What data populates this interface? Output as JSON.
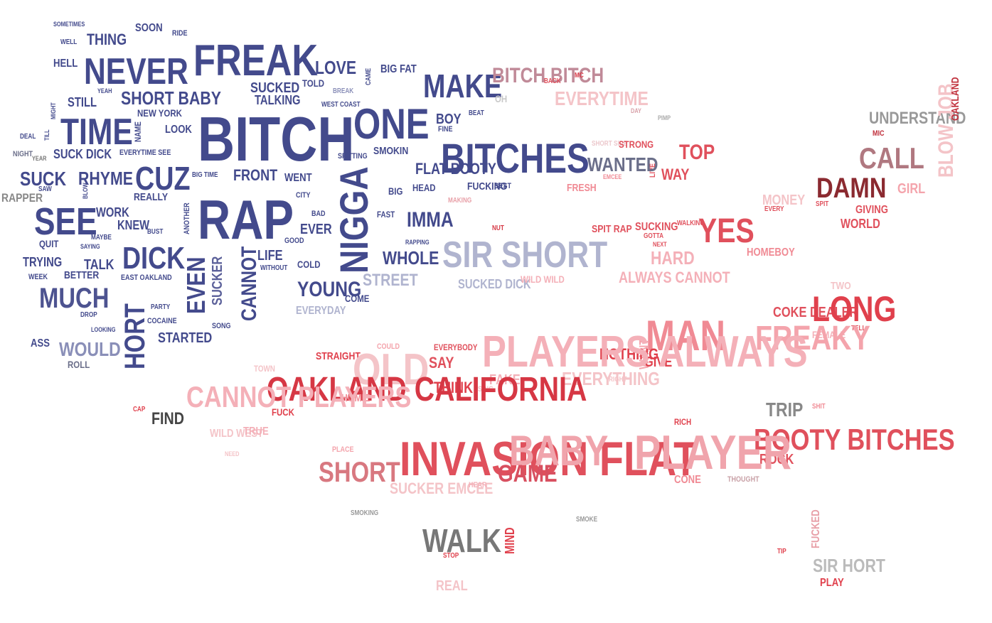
{
  "words": [
    {
      "text": "BITCH",
      "color": "#434a8c"
    },
    {
      "text": "RAP",
      "color": "#434a8c"
    },
    {
      "text": "NIGGA",
      "color": "#434a8c"
    },
    {
      "text": "BITCHES",
      "color": "#434a8c"
    },
    {
      "text": "FREAK",
      "color": "#434a8c"
    },
    {
      "text": "ONE",
      "color": "#434a8c"
    },
    {
      "text": "NEVER",
      "color": "#434a8c"
    },
    {
      "text": "TIME",
      "color": "#434a8c"
    },
    {
      "text": "MAKE",
      "color": "#434a8c"
    },
    {
      "text": "SEE",
      "color": "#434a8c"
    },
    {
      "text": "CUZ",
      "color": "#434a8c"
    },
    {
      "text": "DICK",
      "color": "#434a8c"
    },
    {
      "text": "MUCH",
      "color": "#4d5390"
    },
    {
      "text": "HORT",
      "color": "#434a8c"
    },
    {
      "text": "EVEN",
      "color": "#434a8c"
    },
    {
      "text": "CANNOT",
      "color": "#434a8c"
    },
    {
      "text": "SHORT BABY",
      "color": "#434a8c"
    },
    {
      "text": "LOVE",
      "color": "#434a8c"
    },
    {
      "text": "SUCKED",
      "color": "#434a8c"
    },
    {
      "text": "TALKING",
      "color": "#434a8c"
    },
    {
      "text": "SUCK",
      "color": "#434a8c"
    },
    {
      "text": "RHYME",
      "color": "#434a8c"
    },
    {
      "text": "THING",
      "color": "#434a8c"
    },
    {
      "text": "HELL",
      "color": "#434a8c"
    },
    {
      "text": "STILL",
      "color": "#434a8c"
    },
    {
      "text": "SOON",
      "color": "#434a8c"
    },
    {
      "text": "RIDE",
      "color": "#434a8c"
    },
    {
      "text": "SOMETIMES",
      "color": "#434a8c"
    },
    {
      "text": "WELL",
      "color": "#434a8c"
    },
    {
      "text": "YEAH",
      "color": "#434a8c"
    },
    {
      "text": "NEW YORK",
      "color": "#434a8c"
    },
    {
      "text": "LOOK",
      "color": "#434a8c"
    },
    {
      "text": "NAME",
      "color": "#434a8c"
    },
    {
      "text": "SUCK DICK",
      "color": "#434a8c"
    },
    {
      "text": "EVERYTIME SEE",
      "color": "#434a8c"
    },
    {
      "text": "FRONT",
      "color": "#434a8c"
    },
    {
      "text": "WENT",
      "color": "#434a8c"
    },
    {
      "text": "BIG TIME",
      "color": "#434a8c"
    },
    {
      "text": "REALLY",
      "color": "#434a8c"
    },
    {
      "text": "WORK",
      "color": "#434a8c"
    },
    {
      "text": "KNEW",
      "color": "#434a8c"
    },
    {
      "text": "BUST",
      "color": "#434a8c"
    },
    {
      "text": "ANOTHER",
      "color": "#434a8c"
    },
    {
      "text": "MAYBE",
      "color": "#434a8c"
    },
    {
      "text": "QUIT",
      "color": "#434a8c"
    },
    {
      "text": "SAYING",
      "color": "#434a8c"
    },
    {
      "text": "TRYING",
      "color": "#434a8c"
    },
    {
      "text": "TALK",
      "color": "#434a8c"
    },
    {
      "text": "WEEK",
      "color": "#434a8c"
    },
    {
      "text": "BETTER",
      "color": "#434a8c"
    },
    {
      "text": "EAST OAKLAND",
      "color": "#434a8c"
    },
    {
      "text": "LIFE",
      "color": "#434a8c"
    },
    {
      "text": "WITHOUT",
      "color": "#434a8c"
    },
    {
      "text": "COLD",
      "color": "#434a8c"
    },
    {
      "text": "SUCKER",
      "color": "#5c619a"
    },
    {
      "text": "DROP",
      "color": "#434a8c"
    },
    {
      "text": "LOOKING",
      "color": "#434a8c"
    },
    {
      "text": "PARTY",
      "color": "#434a8c"
    },
    {
      "text": "COCAINE",
      "color": "#434a8c"
    },
    {
      "text": "SONG",
      "color": "#434a8c"
    },
    {
      "text": "STARTED",
      "color": "#434a8c"
    },
    {
      "text": "WOULD",
      "color": "#8a8fb8"
    },
    {
      "text": "ASS",
      "color": "#434a8c"
    },
    {
      "text": "ROLL",
      "color": "#6b6f8a"
    },
    {
      "text": "RAPPER",
      "color": "#888888"
    },
    {
      "text": "NIGHT",
      "color": "#6b6f8a"
    },
    {
      "text": "YEAR",
      "color": "#777777"
    },
    {
      "text": "DEAL",
      "color": "#434a8c"
    },
    {
      "text": "SAW",
      "color": "#434a8c"
    },
    {
      "text": "BLOW",
      "color": "#434a8c"
    },
    {
      "text": "TILL",
      "color": "#434a8c"
    },
    {
      "text": "MIGHT",
      "color": "#434a8c"
    },
    {
      "text": "BIG FAT",
      "color": "#434a8c"
    },
    {
      "text": "CAME",
      "color": "#434a8c"
    },
    {
      "text": "TOLD",
      "color": "#434a8c"
    },
    {
      "text": "BREAK",
      "color": "#8a8fb8"
    },
    {
      "text": "WEST COAST",
      "color": "#434a8c"
    },
    {
      "text": "BOY",
      "color": "#434a8c"
    },
    {
      "text": "BEAT",
      "color": "#434a8c"
    },
    {
      "text": "FINE",
      "color": "#434a8c"
    },
    {
      "text": "SPITTING",
      "color": "#434a8c"
    },
    {
      "text": "SMOKIN",
      "color": "#434a8c"
    },
    {
      "text": "FLAT BOOTY",
      "color": "#434a8c"
    },
    {
      "text": "BIG",
      "color": "#434a8c"
    },
    {
      "text": "HEAD",
      "color": "#434a8c"
    },
    {
      "text": "FUCKING",
      "color": "#434a8c"
    },
    {
      "text": "BEST",
      "color": "#434a8c"
    },
    {
      "text": "MAKING",
      "color": "#e8a0a8"
    },
    {
      "text": "CITY",
      "color": "#434a8c"
    },
    {
      "text": "BAD",
      "color": "#434a8c"
    },
    {
      "text": "FAST",
      "color": "#434a8c"
    },
    {
      "text": "EVER",
      "color": "#434a8c"
    },
    {
      "text": "GOOD",
      "color": "#434a8c"
    },
    {
      "text": "IMMA",
      "color": "#434a8c"
    },
    {
      "text": "RAPPING",
      "color": "#434a8c"
    },
    {
      "text": "WHOLE",
      "color": "#434a8c"
    },
    {
      "text": "YOUNG",
      "color": "#434a8c"
    },
    {
      "text": "COME",
      "color": "#434a8c"
    },
    {
      "text": "EVERYDAY",
      "color": "#b0b4cf"
    },
    {
      "text": "STREET",
      "color": "#b0b4cf"
    },
    {
      "text": "SUCKED DICK",
      "color": "#b0b4cf"
    },
    {
      "text": "SIR SHORT",
      "color": "#b0b4cf"
    },
    {
      "text": "BITCH BITCH",
      "color": "#c08a98"
    },
    {
      "text": "BACK",
      "color": "#e0505c"
    },
    {
      "text": "MC",
      "color": "#d63744"
    },
    {
      "text": "OH",
      "color": "#c8c8c8"
    },
    {
      "text": "EVERYTIME",
      "color": "#f4c4c8"
    },
    {
      "text": "DAY",
      "color": "#d8a0a8"
    },
    {
      "text": "PIMP",
      "color": "#aaaaaa"
    },
    {
      "text": "UNDERSTAND",
      "color": "#999999"
    },
    {
      "text": "MIC",
      "color": "#c0303c"
    },
    {
      "text": "BLOW JOB",
      "color": "#f4c4c8"
    },
    {
      "text": "OAKLAND",
      "color": "#c0303c"
    },
    {
      "text": "SHORT SIDE",
      "color": "#ecc8cc"
    },
    {
      "text": "STRONG",
      "color": "#e0505c"
    },
    {
      "text": "LIVE",
      "color": "#e0505c"
    },
    {
      "text": "WANTED",
      "color": "#6b6f8a"
    },
    {
      "text": "EMCEE",
      "color": "#f08a94"
    },
    {
      "text": "TOP",
      "color": "#e0505c"
    },
    {
      "text": "WAY",
      "color": "#e0505c"
    },
    {
      "text": "CALL",
      "color": "#b07880"
    },
    {
      "text": "GIRL",
      "color": "#f4a4ac"
    },
    {
      "text": "DAMN",
      "color": "#8b2a30"
    },
    {
      "text": "FRESH",
      "color": "#f08a94"
    },
    {
      "text": "MONEY",
      "color": "#f4c4c8"
    },
    {
      "text": "EVERY",
      "color": "#e0505c"
    },
    {
      "text": "SPIT",
      "color": "#e0505c"
    },
    {
      "text": "GIVING",
      "color": "#e0505c"
    },
    {
      "text": "WORLD",
      "color": "#e0505c"
    },
    {
      "text": "NUT",
      "color": "#d63744"
    },
    {
      "text": "SPIT RAP",
      "color": "#e0505c"
    },
    {
      "text": "SUCKING",
      "color": "#e0505c"
    },
    {
      "text": "GOTTA",
      "color": "#e0505c"
    },
    {
      "text": "NEXT",
      "color": "#e0505c"
    },
    {
      "text": "WALKING",
      "color": "#e0505c"
    },
    {
      "text": "YES",
      "color": "#e0505c"
    },
    {
      "text": "HOMEBOY",
      "color": "#f08a94"
    },
    {
      "text": "HARD",
      "color": "#f4b0b8"
    },
    {
      "text": "WILD WILD",
      "color": "#f4b0b8"
    },
    {
      "text": "ALWAYS CANNOT",
      "color": "#f4b0b8"
    },
    {
      "text": "TWO",
      "color": "#f4c4c8"
    },
    {
      "text": "COKE DEALER",
      "color": "#e0505c"
    },
    {
      "text": "LONG",
      "color": "#e0404c"
    },
    {
      "text": "TELL",
      "color": "#e0505c"
    },
    {
      "text": "FEMALE",
      "color": "#f4b0b8"
    },
    {
      "text": "FREAKY",
      "color": "#f4a4ac"
    },
    {
      "text": "MAN",
      "color": "#f08a94"
    },
    {
      "text": "WANT",
      "color": "#f4a4ac"
    },
    {
      "text": "NOTHING",
      "color": "#e0404c"
    },
    {
      "text": "GIVE",
      "color": "#e0404c"
    },
    {
      "text": "PLAYERS ALWAYS",
      "color": "#f4b0b8"
    },
    {
      "text": "COULD",
      "color": "#f4a4ac"
    },
    {
      "text": "EVERYBODY",
      "color": "#e0505c"
    },
    {
      "text": "STRAIGHT",
      "color": "#e0404c"
    },
    {
      "text": "OLD",
      "color": "#f4c4c8"
    },
    {
      "text": "SAY",
      "color": "#e0505c"
    },
    {
      "text": "THINK",
      "color": "#e0404c"
    },
    {
      "text": "FAKE",
      "color": "#f4b0b8"
    },
    {
      "text": "EVERYTHING",
      "color": "#f4c4c8"
    },
    {
      "text": "RIGHT",
      "color": "#f4c4c8"
    },
    {
      "text": "SING",
      "color": "#f4c4c8"
    },
    {
      "text": "TOWN",
      "color": "#f4c4c8"
    },
    {
      "text": "OAKLAND CALIFORNIA",
      "color": "#d63744"
    },
    {
      "text": "HOMIE",
      "color": "#f08a94"
    },
    {
      "text": "CANNOT PLAYERS",
      "color": "#f4b0b8"
    },
    {
      "text": "FUCK",
      "color": "#e0404c"
    },
    {
      "text": "CAP",
      "color": "#e0404c"
    },
    {
      "text": "FIND",
      "color": "#444444"
    },
    {
      "text": "WILD WEST",
      "color": "#f4c4c8"
    },
    {
      "text": "TRUE",
      "color": "#f4b0b8"
    },
    {
      "text": "NEED",
      "color": "#f4c4c8"
    },
    {
      "text": "TRIP",
      "color": "#888888"
    },
    {
      "text": "SHIT",
      "color": "#f08a94"
    },
    {
      "text": "RICH",
      "color": "#e0404c"
    },
    {
      "text": "BOOTY BITCHES",
      "color": "#e0505c"
    },
    {
      "text": "ROCK",
      "color": "#e0505c"
    },
    {
      "text": "PLACE",
      "color": "#f4a4ac"
    },
    {
      "text": "INVASION FLAT",
      "color": "#e0505c"
    },
    {
      "text": "BABY",
      "color": "#f0a4ac"
    },
    {
      "text": "PLAYER",
      "color": "#f0a4ac"
    },
    {
      "text": "SHORT",
      "color": "#d87880"
    },
    {
      "text": "GAME",
      "color": "#d85060"
    },
    {
      "text": "SUCKER EMCEE",
      "color": "#f4c4c8"
    },
    {
      "text": "HEAR",
      "color": "#f4b0b8"
    },
    {
      "text": "CONE",
      "color": "#f08a94"
    },
    {
      "text": "THOUGHT",
      "color": "#c8a0a6"
    },
    {
      "text": "SMOKING",
      "color": "#999999"
    },
    {
      "text": "SMOKE",
      "color": "#999999"
    },
    {
      "text": "WALK",
      "color": "#777777"
    },
    {
      "text": "STOP",
      "color": "#e0404c"
    },
    {
      "text": "MIND",
      "color": "#e0404c"
    },
    {
      "text": "REAL",
      "color": "#f4c4c8"
    },
    {
      "text": "FUCKED",
      "color": "#e8a0a8"
    },
    {
      "text": "TIP",
      "color": "#e0404c"
    },
    {
      "text": "SIR HORT",
      "color": "#bbbbbb"
    },
    {
      "text": "PLAY",
      "color": "#e0404c"
    },
    {
      "text": "CAR",
      "color": "#e0404c"
    }
  ]
}
